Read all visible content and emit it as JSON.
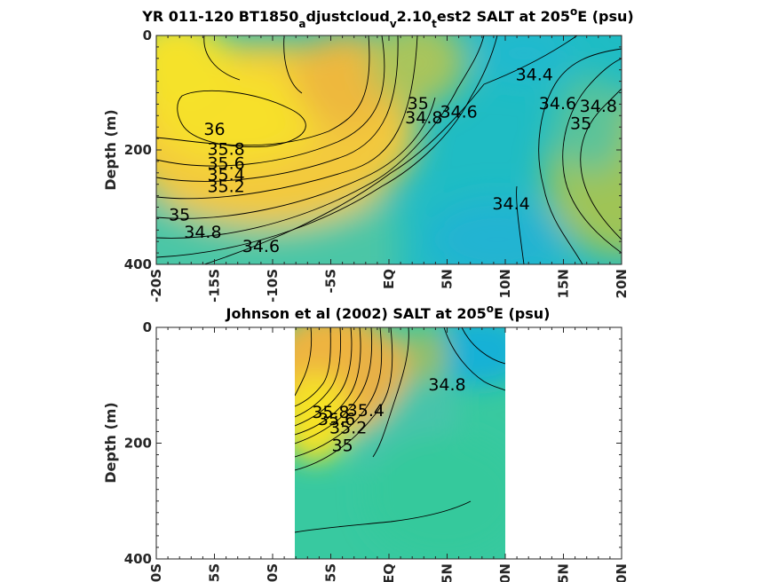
{
  "chart_data": [
    {
      "type": "heatmap",
      "variant": "filled-contour",
      "title": {
        "prefix": "YR 011-120 BT1850",
        "sub1": "a",
        "mid1": "djustcloud",
        "sub2": "v",
        "mid2": "2.10",
        "sub3": "t",
        "mid3": "est2 SALT at 205",
        "sup": "o",
        "suffix": "E (psu)"
      },
      "ylabel": "Depth (m)",
      "xlabel": "",
      "xlim": [
        -20,
        20
      ],
      "ylim": [
        0,
        400
      ],
      "y_reversed": true,
      "x_ticks": [
        "-20S",
        "-15S",
        "-10S",
        "-5S",
        "EQ",
        "5N",
        "10N",
        "15N",
        "20N"
      ],
      "y_ticks": [
        "0",
        "200",
        "400"
      ],
      "contour_levels": [
        34.4,
        34.6,
        34.8,
        35,
        35.2,
        35.4,
        35.6,
        35.8,
        36
      ],
      "contour_labels": [
        {
          "text": "36",
          "x": -15,
          "y": 165
        },
        {
          "text": "35.8",
          "x": -14,
          "y": 200
        },
        {
          "text": "35.6",
          "x": -14,
          "y": 225
        },
        {
          "text": "35.4",
          "x": -14,
          "y": 245
        },
        {
          "text": "35.2",
          "x": -14,
          "y": 265
        },
        {
          "text": "35",
          "x": -18,
          "y": 315
        },
        {
          "text": "34.8",
          "x": -16,
          "y": 345
        },
        {
          "text": "34.6",
          "x": -11,
          "y": 370
        },
        {
          "text": "35",
          "x": 2.5,
          "y": 120
        },
        {
          "text": "34.8",
          "x": 3,
          "y": 145
        },
        {
          "text": "34.6",
          "x": 6,
          "y": 135
        },
        {
          "text": "34.4",
          "x": 12.5,
          "y": 70
        },
        {
          "text": "34.6",
          "x": 14.5,
          "y": 120
        },
        {
          "text": "34.8",
          "x": 18,
          "y": 125
        },
        {
          "text": "35",
          "x": 16.5,
          "y": 155
        },
        {
          "text": "34.4",
          "x": 10.5,
          "y": 295
        }
      ]
    },
    {
      "type": "heatmap",
      "variant": "filled-contour",
      "title": {
        "prefix": "Johnson et al (2002) SALT at 205",
        "sup": "o",
        "suffix": "E (psu)"
      },
      "ylabel": "Depth (m)",
      "xlabel": "",
      "xlim": [
        -20,
        20
      ],
      "ylim": [
        0,
        400
      ],
      "y_reversed": true,
      "data_x_range": [
        -8,
        10
      ],
      "x_ticks": [
        "-20S",
        "-15S",
        "-10S",
        "-5S",
        "EQ",
        "5N",
        "10N",
        "15N",
        "20N"
      ],
      "y_ticks": [
        "0",
        "200",
        "400"
      ],
      "contour_levels": [
        34.8,
        35,
        35.2,
        35.4,
        35.6,
        35.8,
        36
      ],
      "contour_labels": [
        {
          "text": "34.8",
          "x": 5,
          "y": 100
        },
        {
          "text": "35",
          "x": -4,
          "y": 205
        },
        {
          "text": "35.2",
          "x": -3.5,
          "y": 175
        },
        {
          "text": "35.4",
          "x": -2,
          "y": 145
        },
        {
          "text": "35.6",
          "x": -4.5,
          "y": 160
        },
        {
          "text": "35.8",
          "x": -5,
          "y": 148
        }
      ]
    }
  ]
}
